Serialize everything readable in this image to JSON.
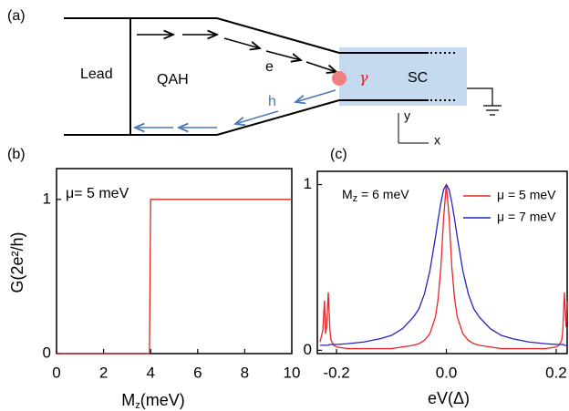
{
  "diagram": {
    "panel_label": "(a)",
    "lead": "Lead",
    "qah": "QAH",
    "electron": "e",
    "hole": "h",
    "gamma": "γ",
    "sc": "SC",
    "axis_y": "y",
    "axis_x": "x"
  },
  "chart_data": [
    {
      "type": "line",
      "panel_label": "(b)",
      "x_label": [
        "M",
        "z",
        "(meV)"
      ],
      "y_label": "G(2e²/h)",
      "annotation": [
        "μ= 5 meV"
      ],
      "x": [
        0,
        3.95,
        4,
        10
      ],
      "series": [
        {
          "color": "#d42a20",
          "values": [
            0,
            0,
            1,
            1
          ]
        }
      ],
      "xlim": [
        0,
        10
      ],
      "xticks": [
        0,
        2,
        4,
        6,
        8,
        10
      ],
      "ylim": [
        0,
        1.2
      ],
      "yticks": [
        0,
        1
      ]
    },
    {
      "type": "line",
      "panel_label": "(c)",
      "x_label": [
        "eV(Δ)"
      ],
      "annotation": [
        "M",
        "z",
        " = 6 meV"
      ],
      "x": [
        -0.23,
        -0.225,
        -0.222,
        -0.22,
        -0.218,
        -0.215,
        -0.212,
        -0.21,
        -0.205,
        -0.2,
        -0.18,
        -0.15,
        -0.12,
        -0.1,
        -0.08,
        -0.06,
        -0.05,
        -0.04,
        -0.03,
        -0.02,
        -0.015,
        -0.01,
        -0.005,
        0,
        0.005,
        0.01,
        0.015,
        0.02,
        0.03,
        0.04,
        0.05,
        0.06,
        0.08,
        0.1,
        0.12,
        0.15,
        0.18,
        0.2,
        0.205,
        0.21,
        0.212,
        0.215,
        0.218,
        0.22
      ],
      "series": [
        {
          "name": "μ = 5 meV",
          "color": "#e8262a",
          "values": [
            0.05,
            0.12,
            0.3,
            0.1,
            0.14,
            0.35,
            0.12,
            0.06,
            0.03,
            0.02,
            0.01,
            0.01,
            0.01,
            0.01,
            0.02,
            0.03,
            0.04,
            0.06,
            0.1,
            0.2,
            0.31,
            0.5,
            0.8,
            1.0,
            0.8,
            0.5,
            0.31,
            0.2,
            0.1,
            0.06,
            0.04,
            0.03,
            0.02,
            0.01,
            0.01,
            0.01,
            0.01,
            0.02,
            0.03,
            0.06,
            0.12,
            0.35,
            0.14,
            0.3
          ]
        },
        {
          "name": "μ = 7 meV",
          "color": "#2424c0",
          "values": [
            0.03,
            0.03,
            0.03,
            0.03,
            0.03,
            0.03,
            0.035,
            0.035,
            0.035,
            0.035,
            0.04,
            0.05,
            0.07,
            0.09,
            0.13,
            0.2,
            0.25,
            0.34,
            0.48,
            0.68,
            0.79,
            0.89,
            0.97,
            1.0,
            0.97,
            0.89,
            0.79,
            0.68,
            0.48,
            0.34,
            0.25,
            0.2,
            0.13,
            0.09,
            0.07,
            0.05,
            0.04,
            0.035,
            0.035,
            0.035,
            0.035,
            0.03,
            0.03,
            0.03
          ]
        }
      ],
      "xlim": [
        -0.235,
        0.22
      ],
      "xticks": [
        -0.2,
        {
          "value": 0,
          "label": "0.0"
        },
        0.2
      ],
      "ylim": [
        -0.02,
        1.08
      ],
      "yticks": [
        0,
        1
      ]
    }
  ]
}
